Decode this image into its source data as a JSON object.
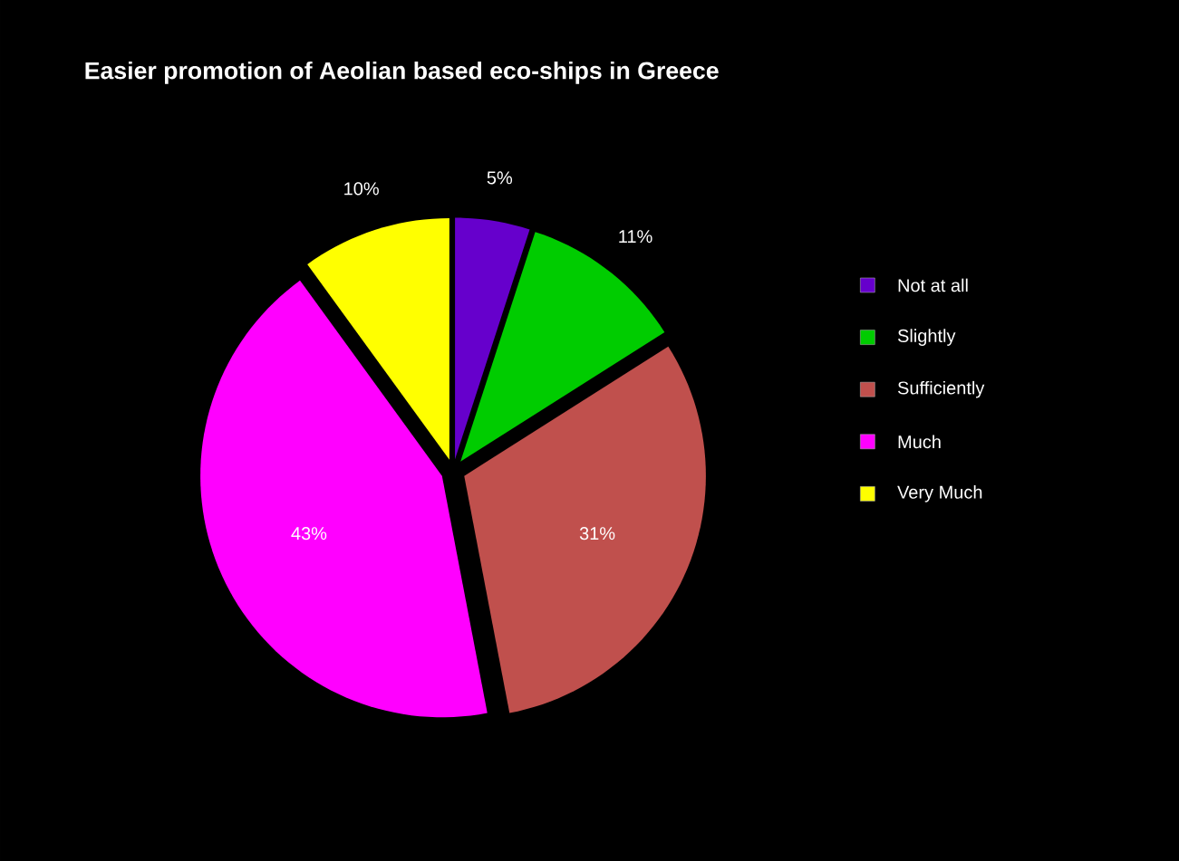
{
  "chart_data": {
    "type": "pie",
    "title": "Easier promotion of Aeolian based eco-ships in Greece",
    "categories": [
      "Not at all",
      "Slightly",
      "Sufficiently",
      "Much",
      "Very Much"
    ],
    "values": [
      5,
      11,
      31,
      43,
      10
    ],
    "value_labels": [
      "5%",
      "11%",
      "31%",
      "43%",
      "10%"
    ],
    "colors": [
      "#6600cc",
      "#00cc00",
      "#c0504d",
      "#ff00ff",
      "#ffff00"
    ],
    "legend": "right"
  }
}
